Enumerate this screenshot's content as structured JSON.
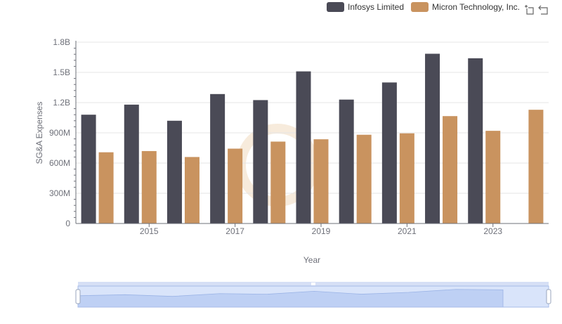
{
  "legend": {
    "items": [
      {
        "label": "Infosys Limited",
        "color": "#4a4a56"
      },
      {
        "label": "Micron Technology, Inc.",
        "color": "#c9935f"
      }
    ]
  },
  "toolbox": {
    "zoom_icon": "zoom-icon",
    "restore_icon": "restore-icon"
  },
  "chart_data": {
    "type": "bar",
    "x": [
      2014,
      2015,
      2016,
      2017,
      2018,
      2019,
      2020,
      2021,
      2022,
      2023,
      2024
    ],
    "x_tick_labels": [
      "2015",
      "2017",
      "2019",
      "2021",
      "2023"
    ],
    "series": [
      {
        "name": "Infosys Limited",
        "color": "#4a4a56",
        "values": [
          1080000000,
          1180000000,
          1020000000,
          1285000000,
          1225000000,
          1510000000,
          1230000000,
          1400000000,
          1685000000,
          1640000000,
          null
        ]
      },
      {
        "name": "Micron Technology, Inc.",
        "color": "#c9935f",
        "values": [
          707000000,
          719000000,
          660000000,
          743000000,
          813000000,
          836000000,
          881000000,
          895000000,
          1066000000,
          920000000,
          1129000000
        ]
      }
    ],
    "ylim": [
      0,
      1800000000
    ],
    "y_tick_labels": [
      "0",
      "300M",
      "600M",
      "900M",
      "1.2B",
      "1.5B",
      "1.8B"
    ],
    "xlabel": "Year",
    "ylabel": "SG&A Expenses",
    "grid": true,
    "legend_position": "top-right"
  }
}
